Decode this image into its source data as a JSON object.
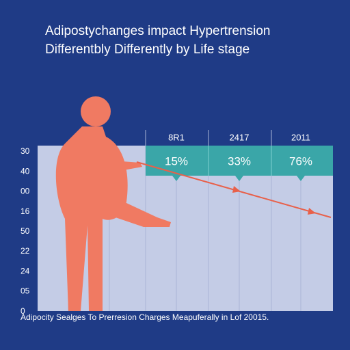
{
  "title": {
    "line1": "Adipostychanges impact Hypertrension",
    "line2": "Differentbly Differently by Life stage"
  },
  "axis": {
    "labels": [
      "30",
      "40",
      "00",
      "16",
      "50",
      "22",
      "24",
      "05",
      "0"
    ]
  },
  "columns": [
    {
      "header": "8R1",
      "callout": "15%"
    },
    {
      "header": "2417",
      "callout": "33%"
    },
    {
      "header": "2011",
      "callout": "76%"
    }
  ],
  "footer": "Adipocity Sealges To Prerresion Charges Meapuferally in Lof 20015."
}
